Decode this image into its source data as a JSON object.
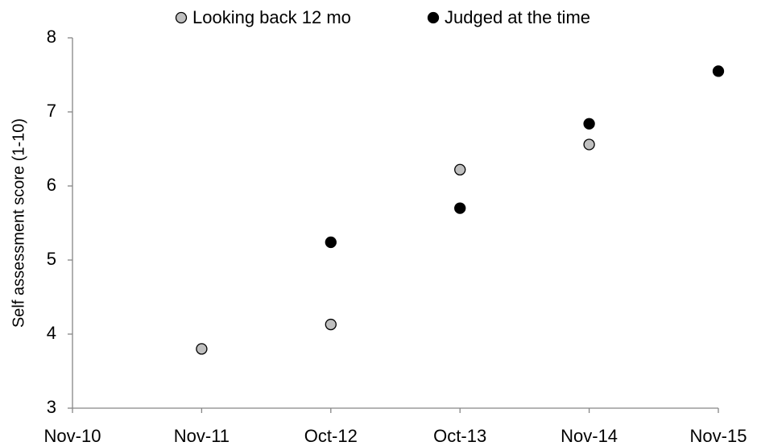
{
  "chart_data": {
    "type": "scatter",
    "y_label": "Self assessment score (1-10)",
    "categories": [
      "Nov-10",
      "Nov-11",
      "Oct-12",
      "Oct-13",
      "Nov-14",
      "Nov-15"
    ],
    "series": [
      {
        "name": "Looking back 12 mo",
        "color": "#bfbfbf",
        "values": [
          null,
          3.8,
          4.13,
          6.22,
          6.56,
          null
        ]
      },
      {
        "name": "Judged at the time",
        "color": "#000000",
        "values": [
          null,
          null,
          5.24,
          5.7,
          6.84,
          7.55
        ]
      }
    ],
    "ylim": [
      3,
      8
    ],
    "yticks": [
      3,
      4,
      5,
      6,
      7,
      8
    ],
    "grid": false,
    "legend": "top"
  }
}
